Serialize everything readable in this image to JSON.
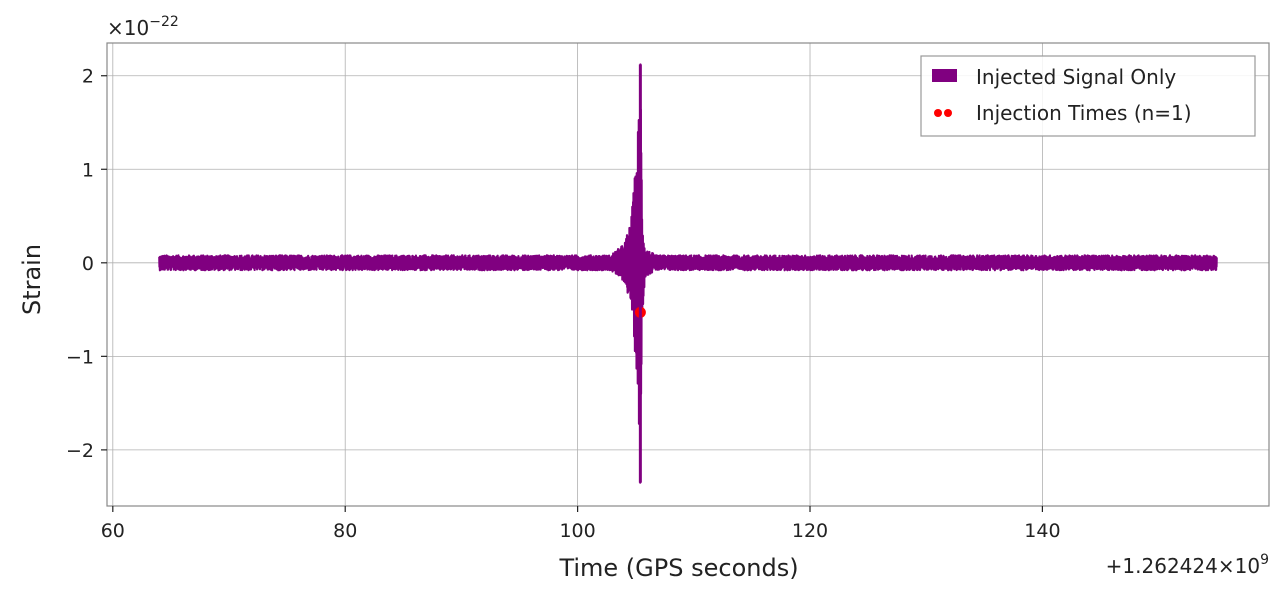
{
  "chart_data": {
    "type": "line",
    "title": "",
    "xlabel": "Time (GPS seconds)",
    "ylabel": "Strain",
    "xlim": [
      59.5,
      159.5
    ],
    "ylim": [
      -2.6,
      2.35
    ],
    "x_ticks": [
      60,
      80,
      100,
      120,
      140
    ],
    "x_tick_labels": [
      "60",
      "80",
      "100",
      "120",
      "140"
    ],
    "y_ticks": [
      -2,
      -1,
      0,
      1,
      2
    ],
    "y_tick_labels": [
      "−2",
      "−1",
      "0",
      "1",
      "2"
    ],
    "y_scale_prefix": "×10",
    "y_scale_exponent": "−22",
    "x_offset_prefix": "+1.262424×10",
    "x_offset_exponent": "9",
    "grid": true,
    "legend_position": "top-right",
    "series": [
      {
        "name": "Injected Signal Only",
        "kind": "line",
        "color": "#800080",
        "x_start": 64.0,
        "x_end": 155.0,
        "baseline_amplitude": 0.08,
        "envelope": [
          {
            "x": 103.0,
            "amp": 0.1
          },
          {
            "x": 104.0,
            "amp": 0.2
          },
          {
            "x": 104.6,
            "amp": 0.45
          },
          {
            "x": 104.9,
            "amp": 0.9
          },
          {
            "x": 105.1,
            "amp": 1.2
          },
          {
            "x": 105.25,
            "amp": 1.6
          },
          {
            "x": 105.4,
            "amp": 2.3
          },
          {
            "x": 105.55,
            "amp": 0.6
          },
          {
            "x": 105.8,
            "amp": 0.15
          },
          {
            "x": 106.5,
            "amp": 0.1
          }
        ],
        "peak_max": 2.12,
        "peak_min": -2.35
      },
      {
        "name": "Injection Times (n=1)",
        "kind": "scatter",
        "color": "#ff0000",
        "points": [
          {
            "x": 105.4,
            "y": -0.53
          }
        ]
      }
    ]
  }
}
